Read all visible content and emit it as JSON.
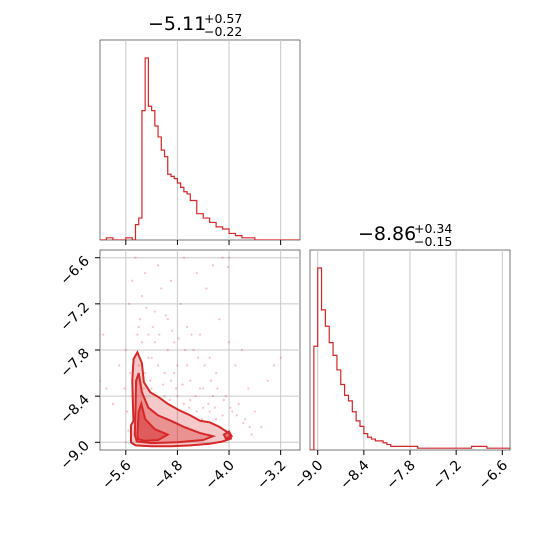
{
  "chart_data": {
    "type": "corner",
    "color": "#d62728",
    "grid": true,
    "params": [
      {
        "title": {
          "median": "−5.11",
          "plus": "+0.57",
          "minus": "−0.22"
        },
        "range": [
          -6.0,
          -2.9
        ],
        "ticks": [
          -5.6,
          -4.8,
          -4.0,
          -3.2
        ],
        "tick_labels": [
          "−5.6",
          "−4.8",
          "−4.0",
          "−3.2"
        ]
      },
      {
        "title": {
          "median": "−8.86",
          "plus": "+0.34",
          "minus": "−0.15"
        },
        "range": [
          -9.1,
          -6.5
        ],
        "ticks": [
          -9.0,
          -8.4,
          -7.8,
          -7.2,
          -6.6
        ],
        "tick_labels": [
          "−9.0",
          "−8.4",
          "−7.8",
          "−7.2",
          "−6.6"
        ]
      }
    ],
    "hist1": {
      "bin_edges": [
        -6.0,
        -5.9,
        -5.8,
        -5.7,
        -5.6,
        -5.5,
        -5.45,
        -5.4,
        -5.35,
        -5.3,
        -5.25,
        -5.2,
        -5.15,
        -5.1,
        -5.05,
        -5.0,
        -4.95,
        -4.9,
        -4.85,
        -4.8,
        -4.75,
        -4.7,
        -4.65,
        -4.6,
        -4.55,
        -4.5,
        -4.4,
        -4.3,
        -4.2,
        -4.1,
        -4.0,
        -3.9,
        -3.8,
        -3.7,
        -3.6,
        -3.5,
        -2.9
      ],
      "counts": [
        0,
        1,
        0,
        0,
        1,
        0,
        7,
        10,
        59,
        83,
        61,
        59,
        52,
        47,
        41,
        38,
        30,
        29,
        28,
        26,
        24,
        22,
        21,
        18,
        18,
        12,
        10,
        8,
        6,
        5,
        3,
        2,
        1,
        1,
        0,
        0
      ]
    },
    "hist2": {
      "bin_edges": [
        -9.1,
        -9.05,
        -9.0,
        -8.95,
        -8.9,
        -8.85,
        -8.8,
        -8.75,
        -8.7,
        -8.65,
        -8.6,
        -8.55,
        -8.5,
        -8.45,
        -8.4,
        -8.35,
        -8.3,
        -8.25,
        -8.2,
        -8.15,
        -8.1,
        -8.05,
        -8.0,
        -7.9,
        -7.8,
        -7.7,
        -7.6,
        -7.5,
        -7.4,
        -7.3,
        -7.2,
        -7.1,
        -7.0,
        -6.9,
        -6.8,
        -6.7,
        -6.6,
        -6.5
      ],
      "counts": [
        0,
        57,
        100,
        77,
        68,
        59,
        52,
        44,
        36,
        30,
        27,
        21,
        16,
        13,
        9,
        7,
        6,
        5,
        5,
        4,
        3,
        2,
        2,
        2,
        2,
        1,
        1,
        1,
        1,
        1,
        1,
        1,
        2,
        2,
        1,
        1,
        1
      ]
    },
    "contours": [
      {
        "level": "outer",
        "points": [
          [
            -5.52,
            -8.78
          ],
          [
            -5.48,
            -8.72
          ],
          [
            -5.49,
            -8.5
          ],
          [
            -5.5,
            -8.2
          ],
          [
            -5.48,
            -7.92
          ],
          [
            -5.42,
            -7.83
          ],
          [
            -5.35,
            -7.97
          ],
          [
            -5.32,
            -8.22
          ],
          [
            -5.22,
            -8.35
          ],
          [
            -5.08,
            -8.42
          ],
          [
            -4.95,
            -8.5
          ],
          [
            -4.78,
            -8.58
          ],
          [
            -4.6,
            -8.65
          ],
          [
            -4.45,
            -8.72
          ],
          [
            -4.3,
            -8.74
          ],
          [
            -4.15,
            -8.8
          ],
          [
            -4.0,
            -8.88
          ],
          [
            -3.97,
            -8.95
          ],
          [
            -4.1,
            -8.99
          ],
          [
            -4.3,
            -9.02
          ],
          [
            -4.6,
            -9.04
          ],
          [
            -4.9,
            -9.05
          ],
          [
            -5.2,
            -9.05
          ],
          [
            -5.45,
            -9.04
          ],
          [
            -5.52,
            -9.0
          ]
        ]
      },
      {
        "level": "middle",
        "points": [
          [
            -5.46,
            -8.9
          ],
          [
            -5.45,
            -8.6
          ],
          [
            -5.44,
            -8.2
          ],
          [
            -5.4,
            -8.1
          ],
          [
            -5.35,
            -8.35
          ],
          [
            -5.25,
            -8.55
          ],
          [
            -5.1,
            -8.65
          ],
          [
            -4.9,
            -8.72
          ],
          [
            -4.7,
            -8.8
          ],
          [
            -4.45,
            -8.88
          ],
          [
            -4.25,
            -8.92
          ],
          [
            -4.4,
            -8.97
          ],
          [
            -4.8,
            -9.0
          ],
          [
            -5.2,
            -9.01
          ],
          [
            -5.43,
            -8.99
          ]
        ]
      },
      {
        "level": "inner",
        "points": [
          [
            -5.42,
            -8.9
          ],
          [
            -5.4,
            -8.6
          ],
          [
            -5.36,
            -8.5
          ],
          [
            -5.3,
            -8.7
          ],
          [
            -5.15,
            -8.83
          ],
          [
            -4.95,
            -8.9
          ],
          [
            -5.1,
            -8.97
          ],
          [
            -5.3,
            -8.98
          ],
          [
            -5.41,
            -8.96
          ]
        ]
      },
      {
        "level": "small",
        "points": [
          [
            -4.08,
            -8.9
          ],
          [
            -4.0,
            -8.86
          ],
          [
            -3.96,
            -8.92
          ],
          [
            -4.05,
            -8.95
          ]
        ]
      }
    ],
    "scatter": [
      [
        -6.0,
        -8.2
      ],
      [
        -5.9,
        -8.3
      ],
      [
        -5.95,
        -7.6
      ],
      [
        -5.7,
        -8.0
      ],
      [
        -5.8,
        -8.5
      ],
      [
        -5.6,
        -7.8
      ],
      [
        -5.55,
        -7.2
      ],
      [
        -5.5,
        -6.9
      ],
      [
        -5.45,
        -6.6
      ],
      [
        -5.4,
        -7.5
      ],
      [
        -5.35,
        -7.1
      ],
      [
        -5.3,
        -6.8
      ],
      [
        -5.25,
        -7.6
      ],
      [
        -5.2,
        -7.9
      ],
      [
        -5.15,
        -7.3
      ],
      [
        -5.1,
        -6.7
      ],
      [
        -5.05,
        -7.0
      ],
      [
        -5.0,
        -8.1
      ],
      [
        -4.95,
        -7.4
      ],
      [
        -4.9,
        -6.9
      ],
      [
        -4.85,
        -7.7
      ],
      [
        -4.8,
        -8.0
      ],
      [
        -4.75,
        -7.2
      ],
      [
        -4.7,
        -6.6
      ],
      [
        -4.65,
        -7.5
      ],
      [
        -4.6,
        -8.2
      ],
      [
        -4.55,
        -7.8
      ],
      [
        -4.5,
        -6.8
      ],
      [
        -4.45,
        -7.6
      ],
      [
        -4.4,
        -8.3
      ],
      [
        -4.35,
        -7.0
      ],
      [
        -4.3,
        -7.9
      ],
      [
        -4.25,
        -6.7
      ],
      [
        -4.2,
        -8.1
      ],
      [
        -4.15,
        -7.4
      ],
      [
        -4.1,
        -6.6
      ],
      [
        -4.05,
        -8.4
      ],
      [
        -4.0,
        -7.7
      ],
      [
        -3.95,
        -8.6
      ],
      [
        -3.9,
        -8.0
      ],
      [
        -3.85,
        -8.5
      ],
      [
        -3.8,
        -7.8
      ],
      [
        -3.75,
        -8.7
      ],
      [
        -3.7,
        -8.3
      ],
      [
        -3.65,
        -8.9
      ],
      [
        -3.6,
        -8.6
      ],
      [
        -3.5,
        -8.8
      ],
      [
        -3.4,
        -8.2
      ],
      [
        -3.3,
        -8.0
      ],
      [
        -3.2,
        -7.9
      ],
      [
        -5.5,
        -8.4
      ],
      [
        -5.45,
        -8.2
      ],
      [
        -5.4,
        -8.0
      ],
      [
        -5.3,
        -8.1
      ],
      [
        -5.2,
        -8.3
      ],
      [
        -5.1,
        -8.0
      ],
      [
        -5.0,
        -8.4
      ],
      [
        -4.9,
        -8.2
      ],
      [
        -4.8,
        -8.4
      ],
      [
        -4.7,
        -8.5
      ],
      [
        -4.6,
        -8.45
      ],
      [
        -4.5,
        -8.6
      ],
      [
        -4.4,
        -8.55
      ],
      [
        -4.3,
        -8.6
      ],
      [
        -4.2,
        -8.7
      ],
      [
        -4.1,
        -8.65
      ],
      [
        -5.35,
        -7.7
      ],
      [
        -5.25,
        -7.9
      ],
      [
        -5.15,
        -7.7
      ],
      [
        -4.95,
        -7.8
      ],
      [
        -4.85,
        -8.1
      ],
      [
        -4.65,
        -8.0
      ],
      [
        -4.45,
        -8.3
      ],
      [
        -4.25,
        -8.4
      ],
      [
        -5.48,
        -7.95
      ],
      [
        -5.42,
        -7.6
      ],
      [
        -5.38,
        -7.4
      ],
      [
        -5.28,
        -7.25
      ],
      [
        -5.18,
        -7.5
      ],
      [
        -5.08,
        -7.6
      ],
      [
        -4.98,
        -7.35
      ],
      [
        -4.88,
        -7.55
      ],
      [
        -4.78,
        -7.65
      ],
      [
        -4.68,
        -7.8
      ],
      [
        -4.58,
        -7.6
      ],
      [
        -4.48,
        -7.9
      ],
      [
        -4.38,
        -8.0
      ],
      [
        -4.28,
        -8.2
      ],
      [
        -4.18,
        -8.3
      ],
      [
        -4.08,
        -8.45
      ],
      [
        -3.98,
        -8.55
      ],
      [
        -3.88,
        -8.65
      ],
      [
        -3.78,
        -8.75
      ],
      [
        -3.68,
        -8.8
      ],
      [
        -5.58,
        -8.6
      ],
      [
        -5.56,
        -8.85
      ],
      [
        -5.6,
        -9.0
      ],
      [
        -5.62,
        -8.3
      ],
      [
        -4.0,
        -6.6
      ],
      [
        -4.02,
        -6.72
      ],
      [
        -5.53,
        -8.1
      ],
      [
        -5.44,
        -8.35
      ],
      [
        -5.36,
        -8.5
      ],
      [
        -5.32,
        -8.3
      ],
      [
        -5.22,
        -8.2
      ],
      [
        -5.12,
        -8.4
      ],
      [
        -5.02,
        -8.25
      ],
      [
        -4.92,
        -8.45
      ],
      [
        -4.82,
        -8.3
      ],
      [
        -4.72,
        -8.25
      ],
      [
        -4.62,
        -8.55
      ],
      [
        -4.52,
        -8.4
      ],
      [
        -4.42,
        -8.7
      ],
      [
        -4.32,
        -8.5
      ],
      [
        -4.22,
        -8.55
      ]
    ]
  }
}
